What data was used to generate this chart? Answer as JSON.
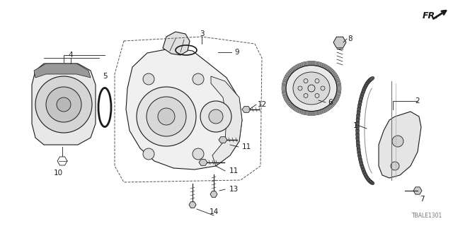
{
  "bg_color": "#ffffff",
  "diagram_code": "TBALE1301",
  "line_color": "#1a1a1a",
  "fig_w": 6.4,
  "fig_h": 3.2,
  "dpi": 100
}
